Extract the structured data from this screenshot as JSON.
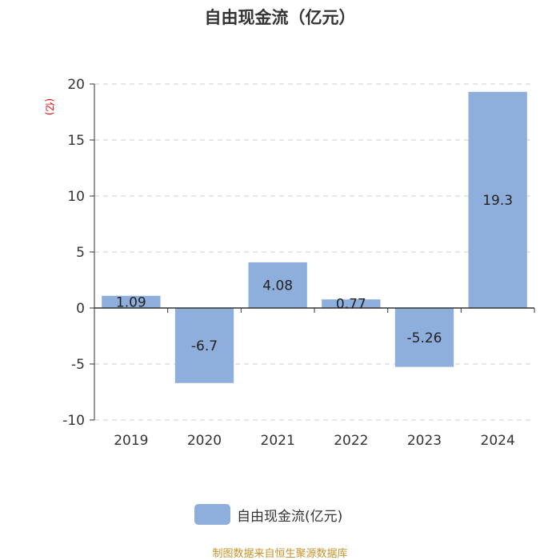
{
  "title": "自由现金流（亿元）",
  "unit_label": "(亿)",
  "legend_label": "自由现金流(亿元)",
  "source": "制图数据来自恒生聚源数据库",
  "colors": {
    "bar": "#8eaedb",
    "grid": "#cccccc",
    "axis": "#333333",
    "unit": "#e00000",
    "source": "#c8922a"
  },
  "chart_data": {
    "type": "bar",
    "title": "自由现金流（亿元）",
    "categories": [
      "2019",
      "2020",
      "2021",
      "2022",
      "2023",
      "2024"
    ],
    "series": [
      {
        "name": "自由现金流(亿元)",
        "values": [
          1.09,
          -6.7,
          4.08,
          0.77,
          -5.26,
          19.3
        ]
      }
    ],
    "data_labels": [
      "1.09",
      "-6.7",
      "4.08",
      "0.77",
      "-5.26",
      "19.3"
    ],
    "ylim": [
      -10,
      20
    ],
    "yticks": [
      20,
      15,
      10,
      5,
      0,
      -5,
      -10
    ],
    "ytick_labels": [
      "20",
      "15",
      "10",
      "5",
      "0",
      "-5",
      "-10"
    ],
    "xlabel": "",
    "ylabel": "(亿)",
    "grid": true,
    "legend_position": "bottom"
  }
}
